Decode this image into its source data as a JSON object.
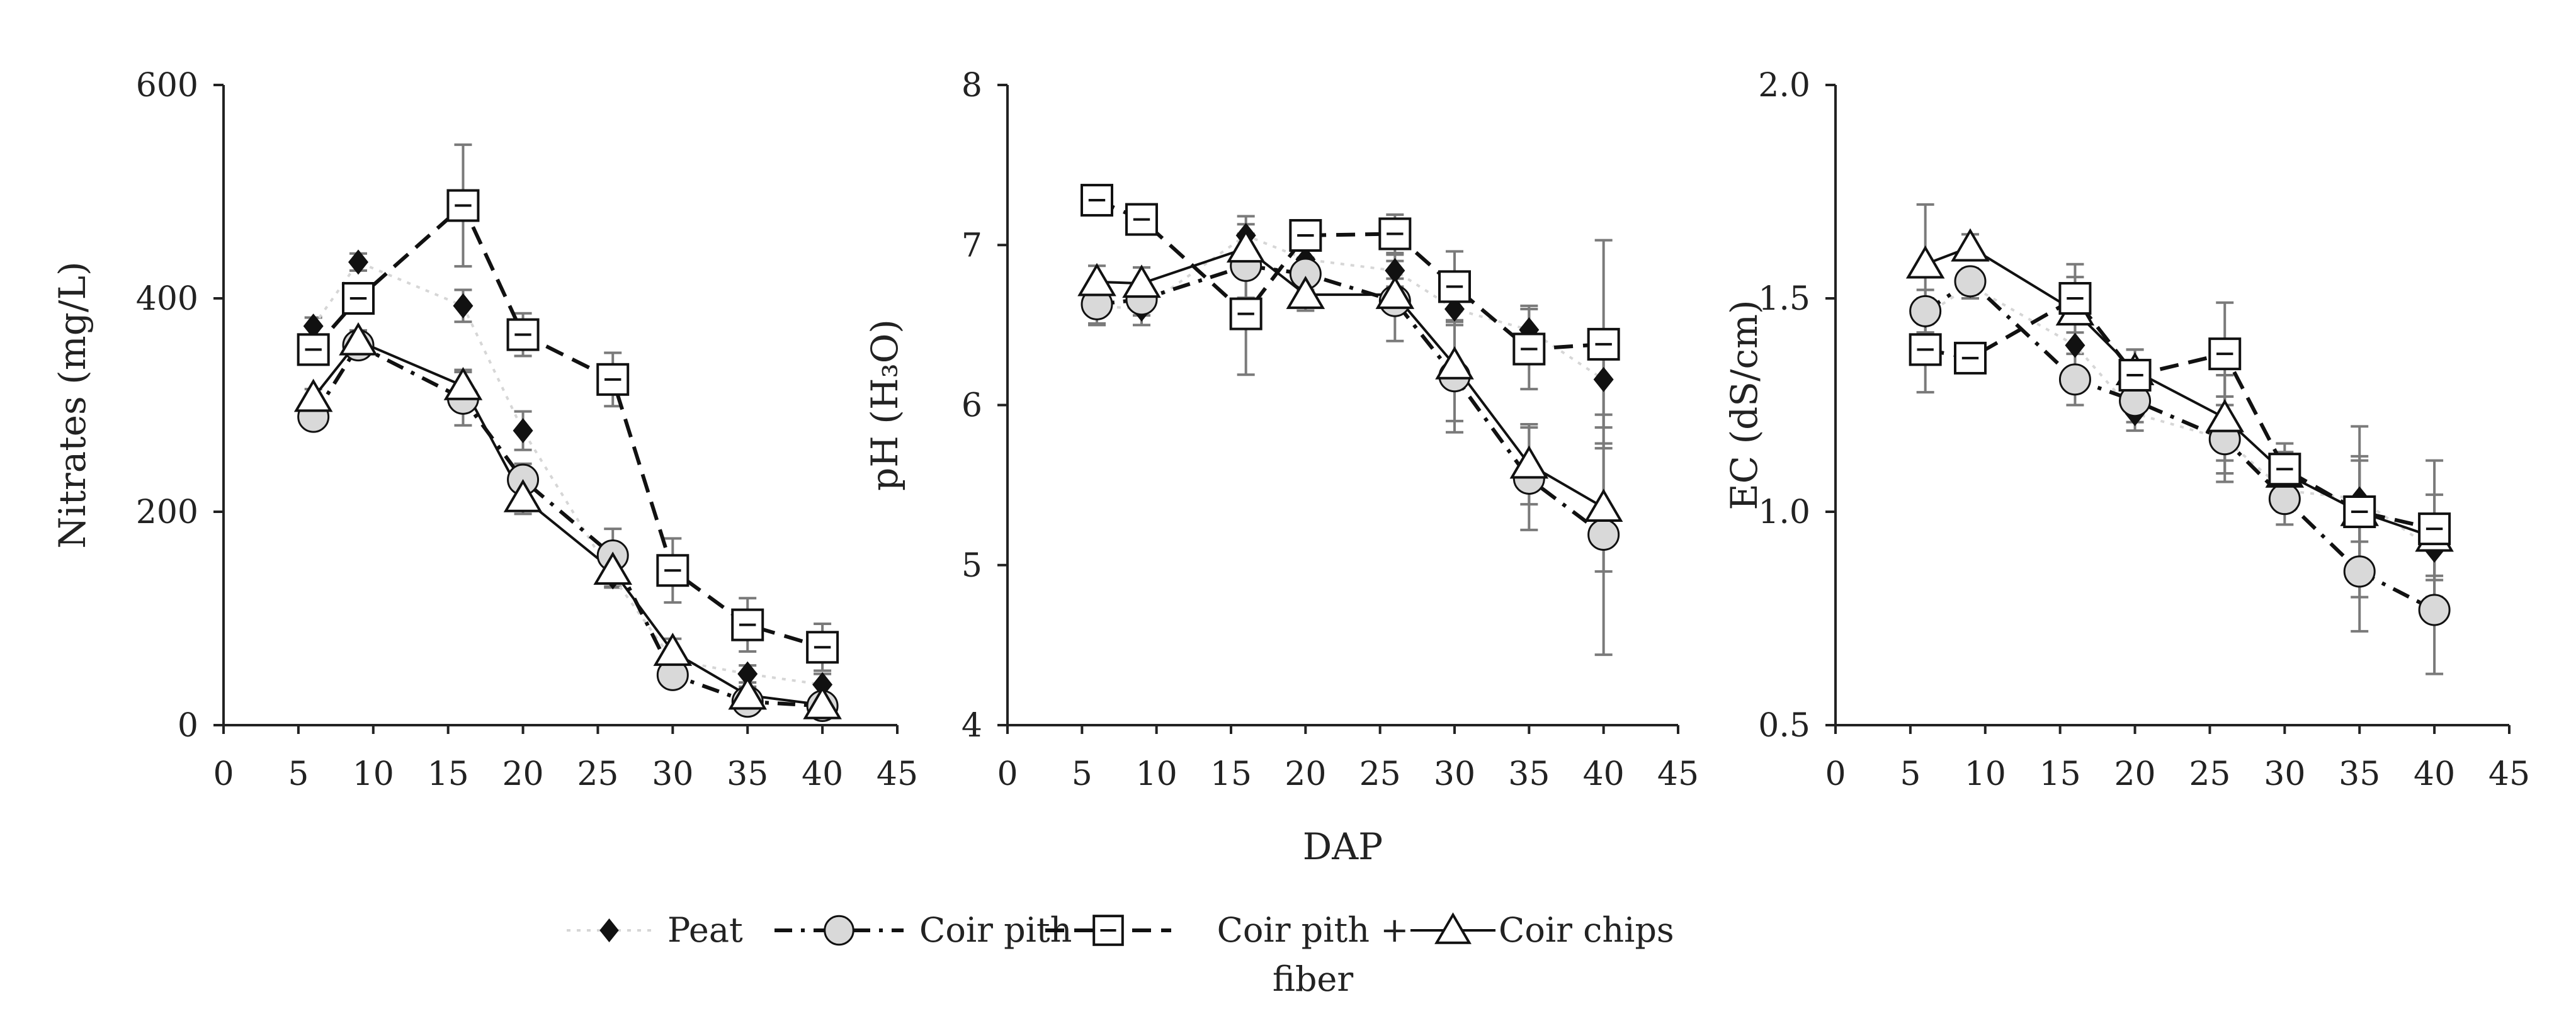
{
  "chart_data": [
    {
      "type": "line",
      "title": "",
      "xlabel": "",
      "ylabel": "Nitrates (mg/L)",
      "xlim": [
        0,
        45
      ],
      "ylim": [
        0,
        600
      ],
      "xticks": [
        "0",
        "5",
        "10",
        "15",
        "20",
        "25",
        "30",
        "35",
        "40",
        "45"
      ],
      "yticks": [
        "0",
        "200",
        "400",
        "600"
      ],
      "x": [
        6,
        9,
        16,
        20,
        26,
        30,
        35,
        40
      ],
      "series": [
        {
          "name": "Peat",
          "values": [
            374,
            434,
            393,
            276,
            139,
            61,
            48,
            38
          ],
          "errors": [
            8,
            8,
            15,
            18,
            10,
            10,
            8,
            10
          ]
        },
        {
          "name": "Coir pith",
          "values": [
            289,
            356,
            306,
            230,
            159,
            47,
            22,
            18
          ],
          "errors": [
            8,
            10,
            25,
            15,
            25,
            10,
            8,
            8
          ]
        },
        {
          "name": "Coir pith + fiber",
          "values": [
            352,
            400,
            487,
            366,
            324,
            145,
            94,
            73
          ],
          "errors": [
            10,
            10,
            57,
            20,
            25,
            30,
            25,
            22
          ]
        },
        {
          "name": "Coir chips",
          "values": [
            307,
            360,
            318,
            213,
            145,
            69,
            28,
            19
          ],
          "errors": [
            8,
            10,
            15,
            15,
            15,
            12,
            8,
            8
          ]
        }
      ]
    },
    {
      "type": "line",
      "title": "",
      "xlabel": "DAP",
      "ylabel": "pH (H₃O)",
      "xlim": [
        0,
        45
      ],
      "ylim": [
        4,
        8
      ],
      "xticks": [
        "0",
        "5",
        "10",
        "15",
        "20",
        "25",
        "30",
        "35",
        "40",
        "45"
      ],
      "yticks": [
        "4",
        "5",
        "6",
        "7",
        "8"
      ],
      "x": [
        6,
        9,
        16,
        20,
        26,
        30,
        35,
        40
      ],
      "series": [
        {
          "name": "Peat",
          "values": [
            6.62,
            6.6,
            7.06,
            6.91,
            6.84,
            6.6,
            6.47,
            6.16
          ],
          "errors": [
            0.12,
            0.1,
            0.12,
            0.1,
            0.1,
            0.1,
            0.15,
            0.3
          ]
        },
        {
          "name": "Coir pith",
          "values": [
            6.63,
            6.66,
            6.87,
            6.82,
            6.65,
            6.18,
            5.54,
            5.19
          ],
          "errors": [
            0.12,
            0.1,
            0.2,
            0.1,
            0.25,
            0.35,
            0.32,
            0.75
          ]
        },
        {
          "name": "Coir pith + fiber",
          "values": [
            7.28,
            7.16,
            6.57,
            7.06,
            7.07,
            6.74,
            6.35,
            6.38
          ],
          "errors": [
            0.05,
            0.05,
            0.38,
            0.05,
            0.12,
            0.22,
            0.25,
            0.65
          ]
        },
        {
          "name": "Coir chips",
          "values": [
            6.77,
            6.76,
            6.98,
            6.69,
            6.69,
            6.25,
            5.63,
            5.36
          ],
          "errors": [
            0.1,
            0.1,
            0.15,
            0.1,
            0.1,
            0.35,
            0.25,
            0.4
          ]
        }
      ]
    },
    {
      "type": "line",
      "title": "",
      "xlabel": "",
      "ylabel": "EC (dS/cm)",
      "xlim": [
        0,
        45
      ],
      "ylim": [
        0.5,
        2.0
      ],
      "xticks": [
        "0",
        "5",
        "10",
        "15",
        "20",
        "25",
        "30",
        "35",
        "40",
        "45"
      ],
      "yticks": [
        "0.5",
        "1.0",
        "1.5",
        "2.0"
      ],
      "x": [
        6,
        9,
        16,
        20,
        26,
        30,
        35,
        40
      ],
      "series": [
        {
          "name": "Peat",
          "values": [
            1.46,
            1.53,
            1.39,
            1.23,
            1.17,
            1.05,
            1.03,
            0.91
          ],
          "errors": [
            0.04,
            0.03,
            0.06,
            0.04,
            0.08,
            0.05,
            0.1,
            0.06
          ]
        },
        {
          "name": "Coir pith",
          "values": [
            1.47,
            1.54,
            1.31,
            1.26,
            1.17,
            1.03,
            0.86,
            0.77
          ],
          "errors": [
            0.05,
            0.03,
            0.06,
            0.05,
            0.1,
            0.06,
            0.14,
            0.15
          ]
        },
        {
          "name": "Coir pith + fiber",
          "values": [
            1.38,
            1.36,
            1.5,
            1.32,
            1.37,
            1.1,
            1.0,
            0.96
          ],
          "errors": [
            0.1,
            0.02,
            0.08,
            0.06,
            0.12,
            0.06,
            0.2,
            0.16
          ]
        },
        {
          "name": "Coir chips",
          "values": [
            1.58,
            1.62,
            1.47,
            1.33,
            1.22,
            1.09,
            1.0,
            0.94
          ],
          "errors": [
            0.14,
            0.03,
            0.08,
            0.05,
            0.1,
            0.05,
            0.12,
            0.1
          ]
        }
      ]
    }
  ],
  "legend": {
    "placement": "bottom-center",
    "entries": [
      {
        "label": "Peat",
        "label_lines": [
          "Peat"
        ],
        "marker": "diamond",
        "dash": "dotted"
      },
      {
        "label": "Coir pith",
        "label_lines": [
          "Coir pith"
        ],
        "marker": "circle",
        "dash": "dash-dot"
      },
      {
        "label": "Coir pith + fiber",
        "label_lines": [
          "Coir pith +",
          "fiber"
        ],
        "marker": "square",
        "dash": "dashed"
      },
      {
        "label": "Coir chips",
        "label_lines": [
          "Coir chips"
        ],
        "marker": "triangle",
        "dash": "solid"
      }
    ]
  },
  "colors": {
    "axis": "#222222",
    "error_bar": "#7a7a7a",
    "peat_line": "#d6d6d6",
    "peat_marker": "#111111",
    "circle_fill": "#d9d9d9",
    "marker_stroke": "#111111",
    "open_fill": "#ffffff"
  }
}
